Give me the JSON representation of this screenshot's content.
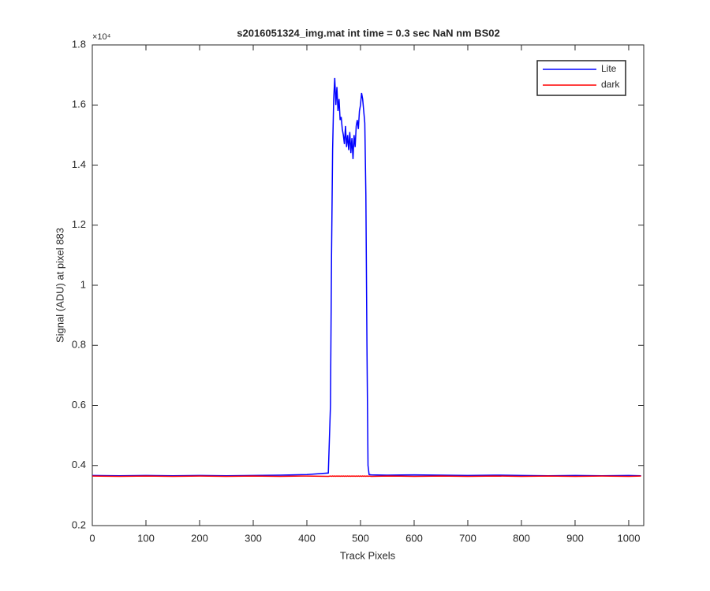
{
  "chart_data": {
    "type": "line",
    "title": "s2016051324_img.mat int time = 0.3 sec  NaN nm BS02",
    "x_label": "Track Pixels",
    "y_label": "Signal (ADU) at pixel 883",
    "y_scale_label": "×10⁴",
    "x": [
      0,
      50,
      100,
      150,
      200,
      250,
      300,
      350,
      400,
      440,
      444,
      446,
      448,
      450,
      452,
      454,
      456,
      458,
      460,
      462,
      464,
      466,
      468,
      470,
      472,
      474,
      476,
      478,
      480,
      482,
      484,
      486,
      488,
      490,
      492,
      494,
      496,
      498,
      500,
      502,
      504,
      506,
      508,
      510,
      512,
      514,
      516,
      520,
      550,
      600,
      650,
      700,
      750,
      800,
      850,
      900,
      950,
      1000,
      1023
    ],
    "series": [
      {
        "name": "Lite",
        "color": "#0000ff",
        "values": [
          0.367,
          0.366,
          0.367,
          0.366,
          0.367,
          0.366,
          0.367,
          0.368,
          0.37,
          0.375,
          0.6,
          1.1,
          1.45,
          1.62,
          1.69,
          1.6,
          1.66,
          1.58,
          1.62,
          1.55,
          1.56,
          1.52,
          1.5,
          1.47,
          1.53,
          1.46,
          1.5,
          1.45,
          1.51,
          1.44,
          1.49,
          1.42,
          1.5,
          1.46,
          1.53,
          1.55,
          1.52,
          1.58,
          1.6,
          1.64,
          1.62,
          1.58,
          1.54,
          1.3,
          0.8,
          0.4,
          0.37,
          0.369,
          0.368,
          0.369,
          0.368,
          0.367,
          0.368,
          0.367,
          0.366,
          0.367,
          0.366,
          0.367,
          0.366
        ]
      },
      {
        "name": "dark",
        "color": "#ff0000",
        "values": [
          0.365,
          0.364,
          0.365,
          0.364,
          0.365,
          0.364,
          0.365,
          0.364,
          0.365,
          0.364,
          0.365,
          0.364,
          0.365,
          0.364,
          0.365,
          0.364,
          0.365,
          0.364,
          0.365,
          0.364,
          0.365,
          0.364,
          0.365,
          0.364,
          0.365,
          0.364,
          0.365,
          0.364,
          0.365,
          0.364,
          0.365,
          0.364,
          0.365,
          0.364,
          0.365,
          0.364,
          0.365,
          0.364,
          0.365,
          0.364,
          0.365,
          0.364,
          0.365,
          0.364,
          0.365,
          0.364,
          0.365,
          0.364,
          0.365,
          0.364,
          0.365,
          0.364,
          0.365,
          0.364,
          0.365,
          0.364,
          0.365,
          0.364,
          0.365
        ]
      }
    ],
    "xlim": [
      0,
      1028
    ],
    "xticks": [
      0,
      100,
      200,
      300,
      400,
      500,
      600,
      700,
      800,
      900,
      1000
    ],
    "ylim": [
      0.2,
      1.8
    ],
    "yticks": [
      0.2,
      0.4,
      0.6,
      0.8,
      1,
      1.2,
      1.4,
      1.6,
      1.8
    ],
    "grid": false,
    "legend": "top-right"
  }
}
